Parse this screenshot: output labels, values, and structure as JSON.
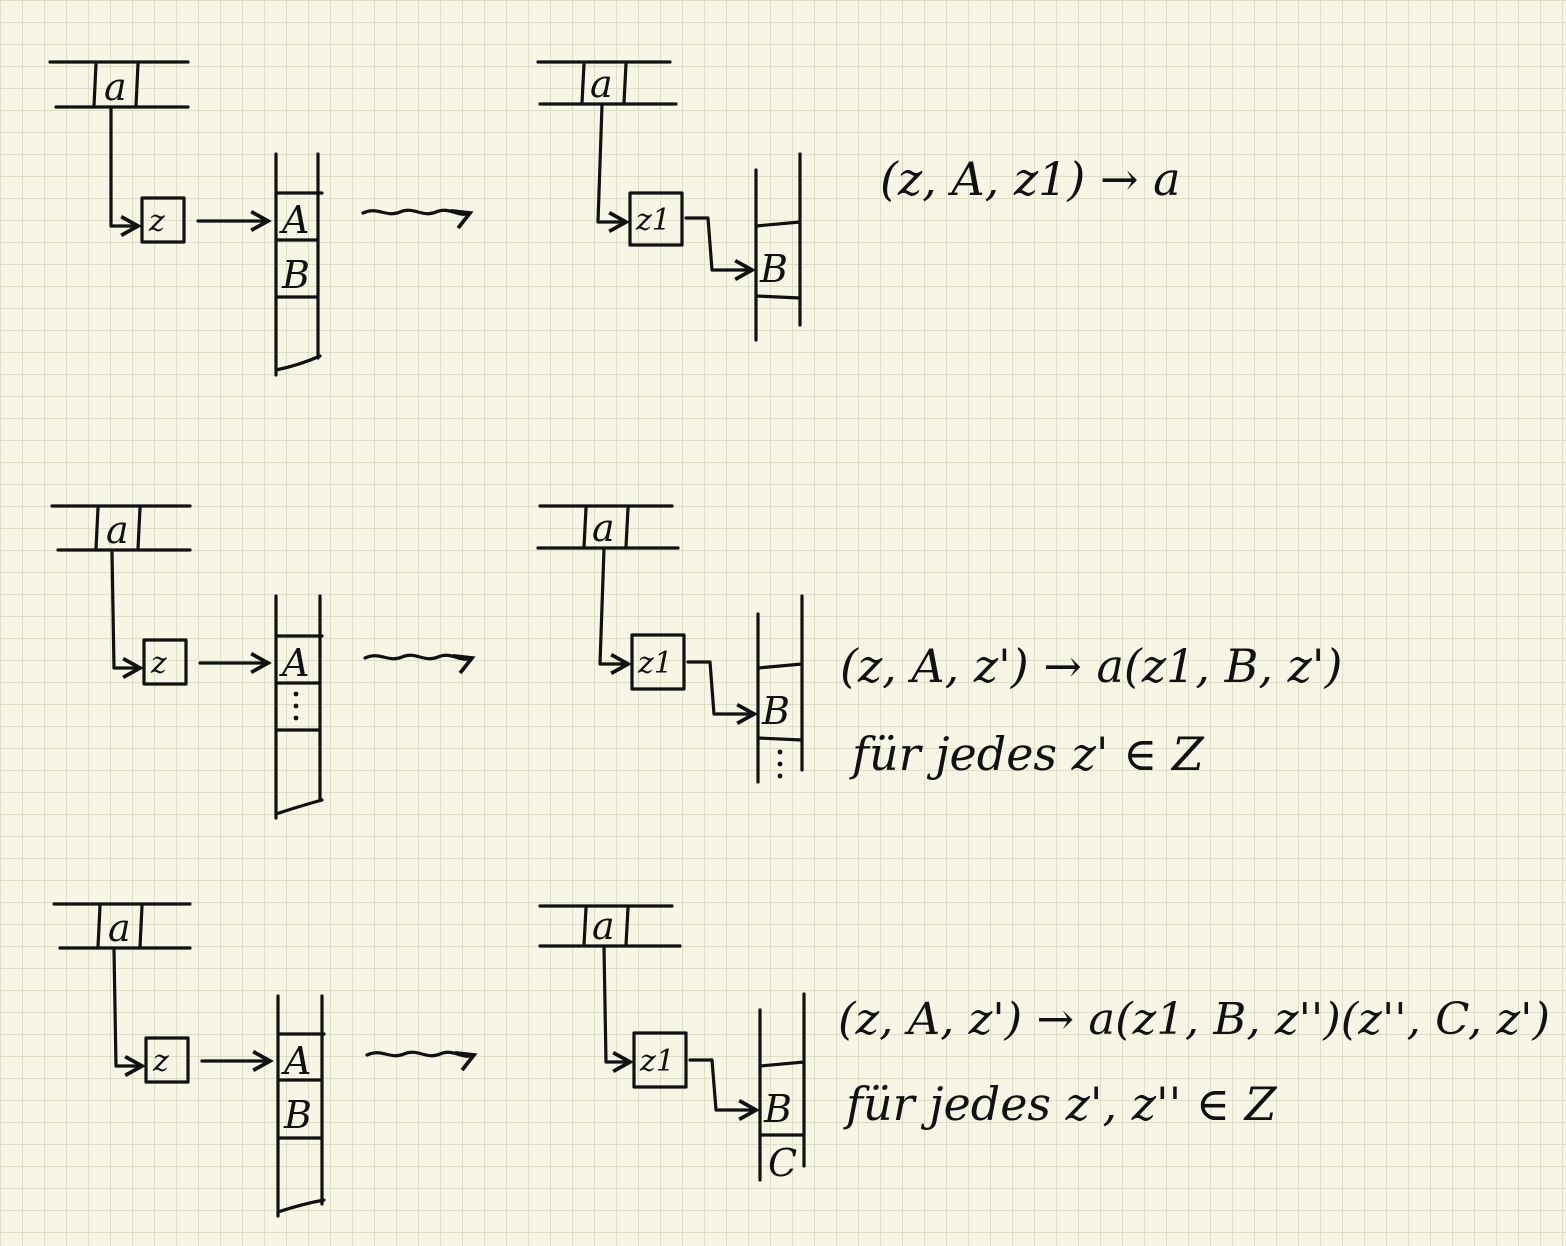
{
  "rows": [
    {
      "before": {
        "input_symbol": "a",
        "state": "z",
        "stack": [
          "A",
          "B"
        ],
        "stack_dots": false
      },
      "after": {
        "input_symbol": "a",
        "state": "z1",
        "stack": [
          "B"
        ],
        "stack_dots": false
      },
      "rule": "(z, A, z1) → a",
      "note": ""
    },
    {
      "before": {
        "input_symbol": "a",
        "state": "z",
        "stack": [
          "A"
        ],
        "stack_dots": true
      },
      "after": {
        "input_symbol": "a",
        "state": "z1",
        "stack": [
          "B"
        ],
        "stack_dots": true
      },
      "rule": "(z, A, z') → a(z1, B, z')",
      "note": "für jedes z' ∈ Z"
    },
    {
      "before": {
        "input_symbol": "a",
        "state": "z",
        "stack": [
          "A",
          "B"
        ],
        "stack_dots": false
      },
      "after": {
        "input_symbol": "a",
        "state": "z1",
        "stack": [
          "B",
          "C"
        ],
        "stack_dots": false
      },
      "rule": "(z, A, z') → a(z1, B, z'')(z'', C, z')",
      "note": "für jedes z', z'' ∈ Z"
    }
  ]
}
